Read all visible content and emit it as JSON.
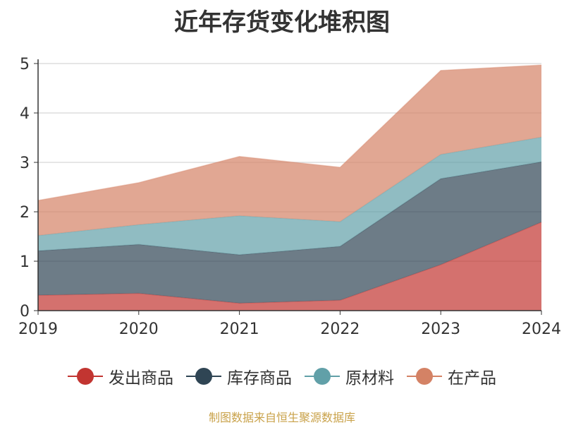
{
  "chart_data": {
    "type": "area",
    "stacked": true,
    "title": "近年存货变化堆积图",
    "categories": [
      "2019",
      "2020",
      "2021",
      "2022",
      "2023",
      "2024"
    ],
    "ylim": [
      0,
      5
    ],
    "yticks": [
      0,
      1,
      2,
      3,
      4,
      5
    ],
    "ylabel": "",
    "xlabel": "",
    "grid": true,
    "legend_position": "bottom",
    "series": [
      {
        "name": "发出商品",
        "color": "#c23531",
        "values": [
          0.31,
          0.35,
          0.15,
          0.21,
          0.93,
          1.79
        ]
      },
      {
        "name": "库存商品",
        "color": "#2f4554",
        "values": [
          0.9,
          0.99,
          0.98,
          1.09,
          1.74,
          1.22
        ]
      },
      {
        "name": "原材料",
        "color": "#61a0a8",
        "values": [
          0.31,
          0.4,
          0.79,
          0.5,
          0.49,
          0.5
        ]
      },
      {
        "name": "在产品",
        "color": "#d48265",
        "values": [
          0.71,
          0.85,
          1.2,
          1.1,
          1.7,
          1.46
        ]
      }
    ]
  },
  "source_note": "制图数据来自恒生聚源数据库"
}
